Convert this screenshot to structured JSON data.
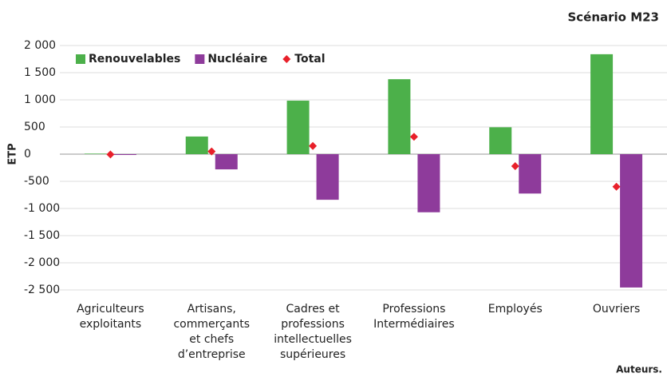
{
  "chart_data": {
    "type": "bar",
    "title": "Scénario M23",
    "source": "Auteurs.",
    "y_label": "ETP",
    "categories": [
      [
        "Agriculteurs",
        "exploitants"
      ],
      [
        "Artisans,",
        "commerçants",
        "et chefs",
        "d’entreprise"
      ],
      [
        "Cadres et",
        "professions",
        "intellectuelles",
        "supérieures"
      ],
      [
        "Professions",
        "Intermédiaires"
      ],
      [
        "Employés"
      ],
      [
        "Ouvriers"
      ]
    ],
    "series": [
      {
        "name": "Renouvelables",
        "type": "bar",
        "color": "#4cb04a",
        "values": [
          10,
          325,
          985,
          1380,
          495,
          1840
        ]
      },
      {
        "name": "Nucléaire",
        "type": "bar",
        "color": "#8e3b9b",
        "values": [
          -15,
          -280,
          -840,
          -1070,
          -725,
          -2455
        ]
      },
      {
        "name": "Total",
        "type": "scatter",
        "color": "#e8202a",
        "values": [
          -5,
          50,
          150,
          320,
          -220,
          -600
        ]
      }
    ],
    "ylim": [
      -2500,
      2000
    ],
    "yticks": [
      {
        "value": 2000,
        "label": "2 000"
      },
      {
        "value": 1500,
        "label": "1 500"
      },
      {
        "value": 1000,
        "label": "1 000"
      },
      500,
      0,
      -500,
      {
        "value": -1000,
        "label": "-1 000"
      },
      {
        "value": -1500,
        "label": "-1 500"
      },
      {
        "value": -2000,
        "label": "-2 000"
      },
      {
        "value": -2500,
        "label": "-2 500"
      }
    ],
    "grid": true,
    "legend": "top-left"
  }
}
